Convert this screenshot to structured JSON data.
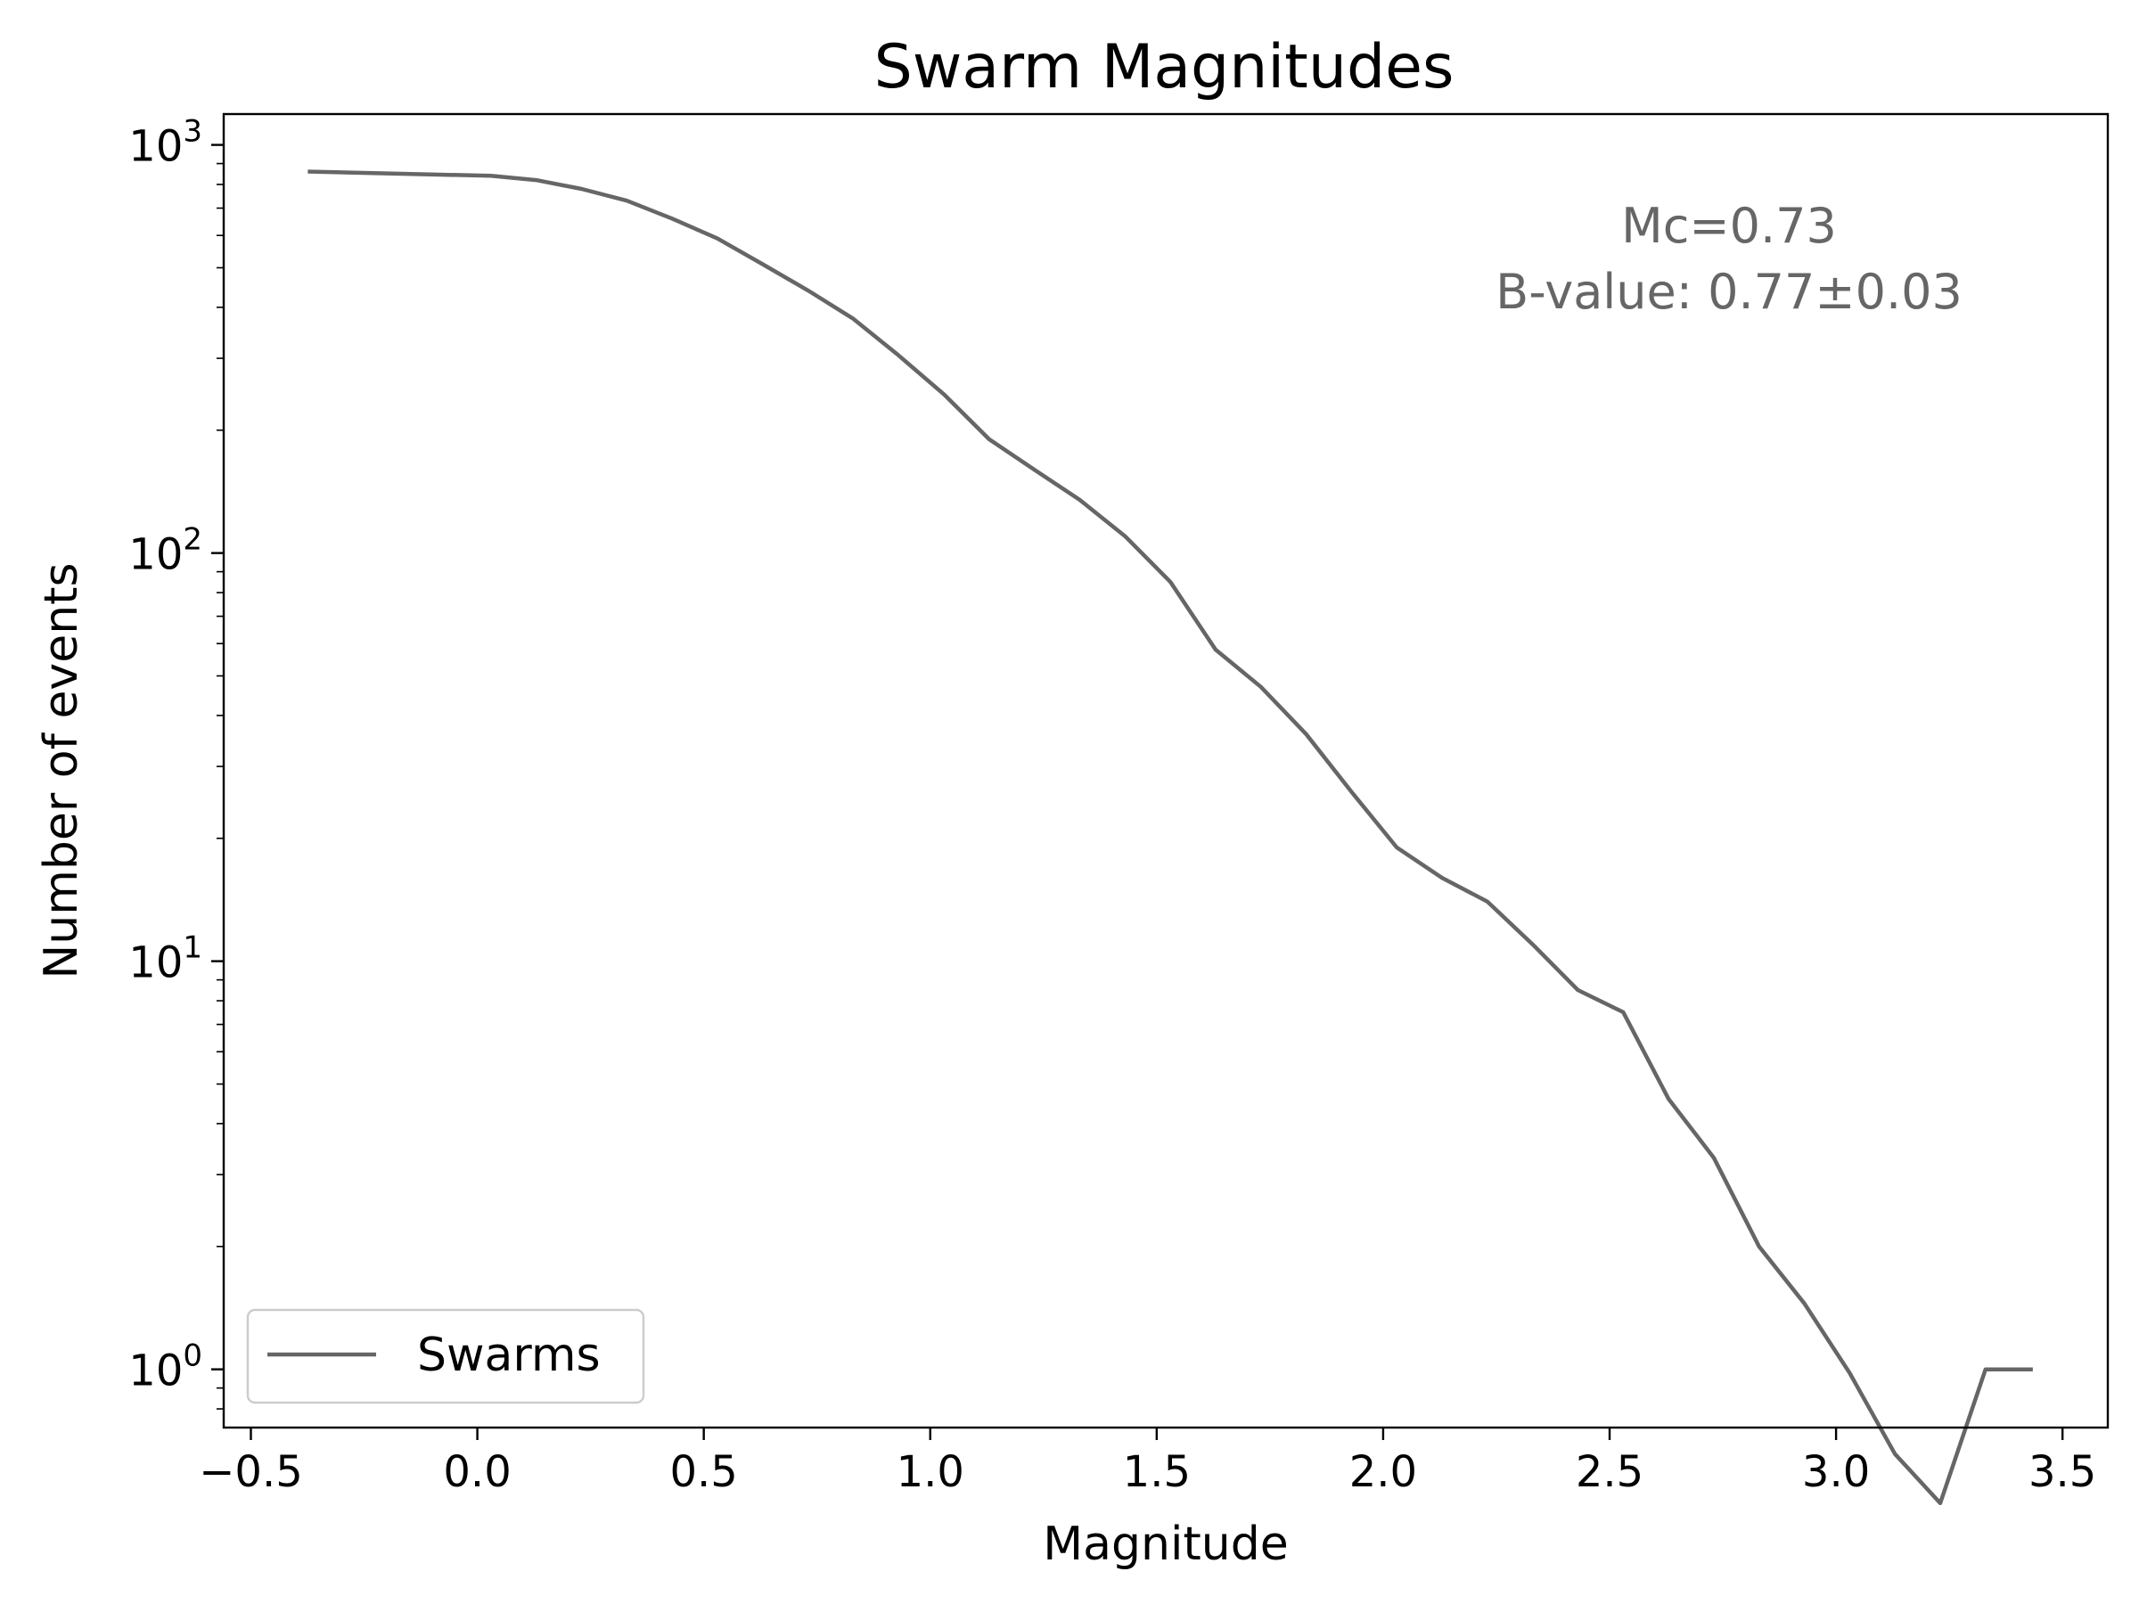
{
  "chart_data": {
    "type": "line",
    "title": "Swarm Magnitudes",
    "xlabel": "Magnitude",
    "ylabel": "Number of events",
    "xlim": [
      -0.56,
      3.6
    ],
    "ylim": [
      0.72,
      1190
    ],
    "yscale": "log",
    "grid": false,
    "legend_position": "lower-left",
    "x_ticks": [
      -0.5,
      0.0,
      0.5,
      1.0,
      1.5,
      2.0,
      2.5,
      3.0,
      3.5
    ],
    "x_tick_labels": [
      "−0.5",
      "0.0",
      "0.5",
      "1.0",
      "1.5",
      "2.0",
      "2.5",
      "3.0",
      "3.5"
    ],
    "y_ticks": [
      1,
      10,
      100,
      1000
    ],
    "y_tick_bases": [
      "10",
      "10",
      "10",
      "10"
    ],
    "y_tick_exponents": [
      "0",
      "1",
      "2",
      "3"
    ],
    "annotations": [
      "Mc=0.73",
      "B-value: 0.77±0.03"
    ],
    "series": [
      {
        "name": "Swarms",
        "color": "#666666",
        "x": [
          -0.37,
          0.03,
          0.13,
          0.23,
          0.33,
          0.43,
          0.53,
          0.63,
          0.73,
          0.83,
          0.93,
          1.03,
          1.13,
          1.23,
          1.33,
          1.43,
          1.53,
          1.63,
          1.73,
          1.83,
          1.93,
          2.03,
          2.13,
          2.23,
          2.33,
          2.43,
          2.53,
          2.63,
          2.73,
          2.83,
          2.93,
          3.03,
          3.13,
          3.23,
          3.33,
          3.43
        ],
        "y": [
          860,
          840,
          820,
          780,
          730,
          660,
          590,
          510,
          440,
          375,
          305,
          245,
          190,
          160,
          135,
          110,
          85,
          58,
          47,
          36,
          26,
          19,
          16,
          14,
          11,
          8.5,
          7.5,
          4.6,
          3.3,
          2.0,
          1.45,
          0.98,
          0.62,
          0.47,
          1,
          1
        ]
      }
    ]
  }
}
